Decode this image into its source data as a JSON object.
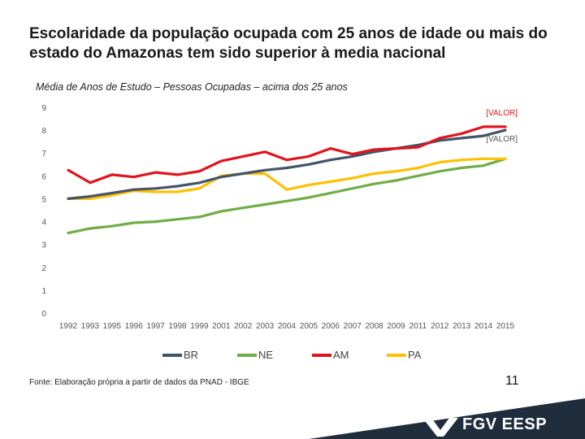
{
  "slide": {
    "title_line1": "Escolaridade da população ocupada com 25 anos de idade ou mais do",
    "title_line2": "estado do Amazonas tem sido superior à media nacional",
    "subtitle": "Média de Anos de Estudo – Pessoas Ocupadas – acima dos 25 anos",
    "source": "Fonte: Elaboração própria a partir de dados da PNAD - IBGE",
    "page_number": "11",
    "brand": "FGV EESP",
    "footer_color": "#1f2d3d"
  },
  "chart_data": {
    "type": "line",
    "title": "",
    "xlabel": "",
    "ylabel": "",
    "ylim": [
      0,
      9
    ],
    "yticks": [
      0,
      1,
      2,
      3,
      4,
      5,
      6,
      7,
      8,
      9
    ],
    "grid": false,
    "legend_position": "bottom",
    "categories": [
      "1992",
      "1993",
      "1995",
      "1996",
      "1997",
      "1998",
      "1999",
      "2001",
      "2002",
      "2003",
      "2004",
      "2005",
      "2006",
      "2007",
      "2008",
      "2009",
      "2011",
      "2012",
      "2013",
      "2014",
      "2015"
    ],
    "series": [
      {
        "name": "BR",
        "color": "#44546a",
        "values": [
          5.0,
          5.1,
          5.25,
          5.4,
          5.45,
          5.55,
          5.7,
          5.95,
          6.1,
          6.25,
          6.35,
          6.5,
          6.7,
          6.85,
          7.05,
          7.2,
          7.35,
          7.55,
          7.65,
          7.75,
          8.0
        ]
      },
      {
        "name": "NE",
        "color": "#70ad47",
        "values": [
          3.5,
          3.7,
          3.8,
          3.95,
          4.0,
          4.1,
          4.2,
          4.45,
          4.6,
          4.75,
          4.9,
          5.05,
          5.25,
          5.45,
          5.65,
          5.8,
          6.0,
          6.2,
          6.35,
          6.45,
          6.75
        ]
      },
      {
        "name": "AM",
        "color": "#e0141c",
        "values": [
          6.25,
          5.7,
          6.05,
          5.95,
          6.15,
          6.05,
          6.2,
          6.65,
          6.85,
          7.05,
          6.7,
          6.85,
          7.2,
          6.95,
          7.15,
          7.2,
          7.25,
          7.65,
          7.85,
          8.15,
          8.15
        ]
      },
      {
        "name": "PA",
        "color": "#ffc000",
        "values": [
          5.0,
          5.0,
          5.15,
          5.35,
          5.3,
          5.3,
          5.45,
          6.0,
          6.1,
          6.1,
          5.4,
          5.6,
          5.75,
          5.9,
          6.1,
          6.2,
          6.35,
          6.6,
          6.7,
          6.75,
          6.75
        ]
      }
    ],
    "data_labels": [
      {
        "series": "AM",
        "text": "[VALOR]",
        "color": "#e0141c"
      },
      {
        "series": "BR",
        "text": "[VALOR]",
        "color": "#555555"
      }
    ]
  }
}
